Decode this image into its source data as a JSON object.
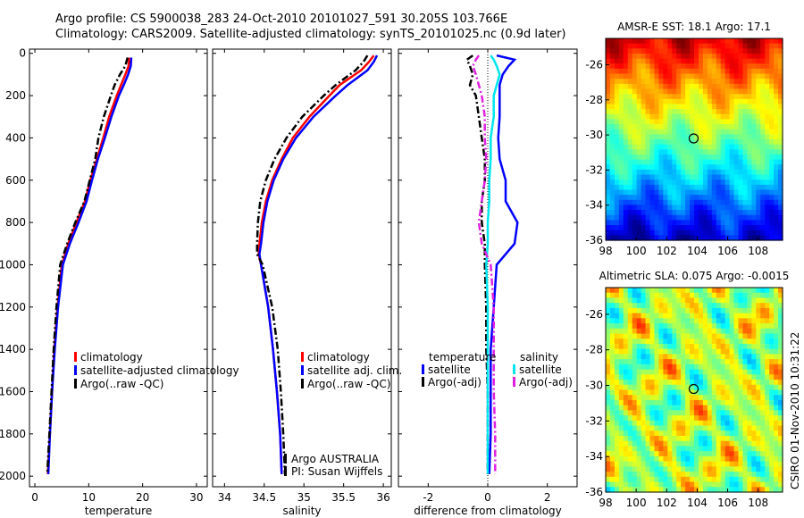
{
  "header": {
    "line1": "Argo profile: CS 5900038_283 24-Oct-2010 20101027_591 30.205S 103.766E",
    "line2": "Climatology: CARS2009. Satellite-adjusted climatology: synTS_20101025.nc (0.9d later)"
  },
  "side_stamp": "CSIRO 01-Nov-2010 10:31:22",
  "colors": {
    "red": "#ff0000",
    "blue": "#0000ff",
    "black": "#000000",
    "cyan": "#00e5ee",
    "magenta": "#e020e0"
  },
  "chart_data": [
    {
      "type": "line",
      "id": "temperature",
      "xlabel": "temperature",
      "xticks": [
        "0",
        "10",
        "20",
        "30"
      ],
      "yticks": [
        "0",
        "200",
        "400",
        "600",
        "800",
        "1000",
        "1200",
        "1400",
        "1600",
        "1800",
        "2000"
      ],
      "xlim": [
        -1,
        32
      ],
      "ylim": [
        2050,
        -20
      ],
      "legend": [
        "climatology",
        "satellite-adjusted climatology",
        "Argo(..raw -QC)"
      ],
      "depth": [
        20,
        60,
        100,
        150,
        200,
        300,
        400,
        500,
        600,
        700,
        800,
        900,
        1000,
        1200,
        1400,
        1600,
        1800,
        1990
      ],
      "series": [
        {
          "name": "climatology",
          "color": "red",
          "values": [
            17.5,
            17.4,
            16.8,
            16.0,
            15.2,
            13.8,
            12.7,
            11.5,
            10.3,
            9.3,
            7.7,
            6.2,
            5.0,
            4.2,
            3.6,
            3.2,
            2.8,
            2.4
          ]
        },
        {
          "name": "satellite-adjusted climatology",
          "color": "blue",
          "values": [
            17.9,
            17.8,
            17.3,
            16.5,
            15.6,
            14.2,
            13.0,
            11.7,
            10.6,
            9.6,
            8.1,
            6.5,
            5.2,
            4.3,
            3.7,
            3.2,
            2.8,
            2.5
          ]
        },
        {
          "name": "Argo(..raw -QC)",
          "color": "black",
          "dash": true,
          "values": [
            17.2,
            16.8,
            15.8,
            14.8,
            14.1,
            12.8,
            11.8,
            11.2,
            10.2,
            9.2,
            7.5,
            6.0,
            4.7,
            4.0,
            3.5,
            3.1,
            2.7,
            2.3
          ]
        }
      ]
    },
    {
      "type": "line",
      "id": "salinity",
      "xlabel": "salinity",
      "xticks": [
        "34",
        "34.5",
        "35",
        "35.5",
        "36"
      ],
      "yticks": [],
      "xlim": [
        33.85,
        36.1
      ],
      "ylim": [
        2050,
        -20
      ],
      "legend": [
        "climatology",
        "satellite adj. clim.",
        "Argo(..raw -QC)"
      ],
      "annotations": [
        "Argo AUSTRALIA",
        "PI: Susan Wijffels"
      ],
      "depth": [
        10,
        40,
        80,
        150,
        200,
        300,
        400,
        500,
        600,
        700,
        800,
        900,
        950,
        1000,
        1200,
        1400,
        1600,
        1800,
        1990
      ],
      "series": [
        {
          "name": "climatology",
          "color": "red",
          "values": [
            35.88,
            35.82,
            35.72,
            35.45,
            35.32,
            35.07,
            34.86,
            34.72,
            34.6,
            34.52,
            34.47,
            34.44,
            34.43,
            34.46,
            34.55,
            34.61,
            34.66,
            34.7,
            34.72
          ]
        },
        {
          "name": "satellite adj. clim.",
          "color": "blue",
          "values": [
            35.92,
            35.88,
            35.8,
            35.55,
            35.4,
            35.12,
            34.9,
            34.74,
            34.62,
            34.54,
            34.49,
            34.46,
            34.44,
            34.46,
            34.55,
            34.61,
            34.66,
            34.7,
            34.72
          ]
        },
        {
          "name": "Argo(..raw -QC)",
          "color": "black",
          "dash": true,
          "values": [
            35.8,
            35.75,
            35.65,
            35.4,
            35.25,
            34.98,
            34.78,
            34.63,
            34.52,
            34.45,
            34.42,
            34.41,
            34.41,
            34.48,
            34.6,
            34.67,
            34.71,
            34.74,
            34.76
          ]
        }
      ]
    },
    {
      "type": "line",
      "id": "difference",
      "xlabel": "difference from climatology",
      "xticks": [
        "-2",
        "0",
        "2"
      ],
      "yticks": [],
      "xlim": [
        -3,
        3
      ],
      "ylim": [
        2050,
        -20
      ],
      "legend_headers": [
        "temperature",
        "salinity"
      ],
      "legend": [
        "satellite",
        "Argo(-adj)",
        "satellite",
        "Argo(-adj)"
      ],
      "depth": [
        10,
        30,
        60,
        100,
        150,
        200,
        300,
        400,
        500,
        600,
        700,
        800,
        900,
        1000,
        1200,
        1400,
        1600,
        1800,
        1990
      ],
      "series": [
        {
          "name": "satellite",
          "group": "temperature",
          "color": "blue",
          "values": [
            0.3,
            0.9,
            0.7,
            0.5,
            0.4,
            0.4,
            0.4,
            0.35,
            0.4,
            0.6,
            0.6,
            1.0,
            0.9,
            0.3,
            0.2,
            0.1,
            0.1,
            0.1,
            0.05
          ]
        },
        {
          "name": "Argo(-adj)",
          "group": "temperature",
          "color": "black",
          "dash": true,
          "values": [
            -0.5,
            -0.7,
            -0.6,
            -0.5,
            -0.6,
            -0.4,
            -0.3,
            -0.2,
            -0.1,
            -0.1,
            -0.2,
            -0.2,
            -0.1,
            -0.1,
            -0.05,
            -0.05,
            0,
            0,
            0
          ]
        },
        {
          "name": "satellite",
          "group": "salinity",
          "color": "cyan",
          "values": [
            0.1,
            0.2,
            0.3,
            0.4,
            0.3,
            0.2,
            0.2,
            0.1,
            0.1,
            0.05,
            0.05,
            0.0,
            0.0,
            -0.05,
            0.0,
            0.0,
            0.0,
            0.0,
            0.0
          ]
        },
        {
          "name": "Argo(-adj)",
          "group": "salinity",
          "color": "magenta",
          "dash": true,
          "values": [
            -0.3,
            -0.4,
            -0.5,
            -0.4,
            -0.3,
            -0.2,
            -0.1,
            -0.1,
            -0.05,
            -0.1,
            -0.2,
            -0.3,
            -0.2,
            0.1,
            0.2,
            0.2,
            0.2,
            0.25,
            0.25
          ]
        }
      ]
    },
    {
      "type": "heatmap",
      "id": "sst_map",
      "title": "AMSR-E SST: 18.1 Argo: 17.1",
      "xticks": [
        "98",
        "100",
        "102",
        "104",
        "106",
        "108"
      ],
      "yticks": [
        "-26",
        "-28",
        "-30",
        "-32",
        "-34",
        "-36"
      ],
      "xlim": [
        98,
        109.6
      ],
      "ylim": [
        -24.5,
        -36
      ],
      "marker": {
        "lon": 103.77,
        "lat": -30.2
      }
    },
    {
      "type": "heatmap",
      "id": "sla_map",
      "title": "Altimetric SLA: 0.075 Argo: -0.0015",
      "xticks": [
        "98",
        "100",
        "102",
        "104",
        "106",
        "108"
      ],
      "yticks": [
        "-26",
        "-28",
        "-30",
        "-32",
        "-34",
        "-36"
      ],
      "xlim": [
        98,
        109.6
      ],
      "ylim": [
        -24.5,
        -36
      ],
      "marker": {
        "lon": 103.77,
        "lat": -30.2
      }
    }
  ]
}
